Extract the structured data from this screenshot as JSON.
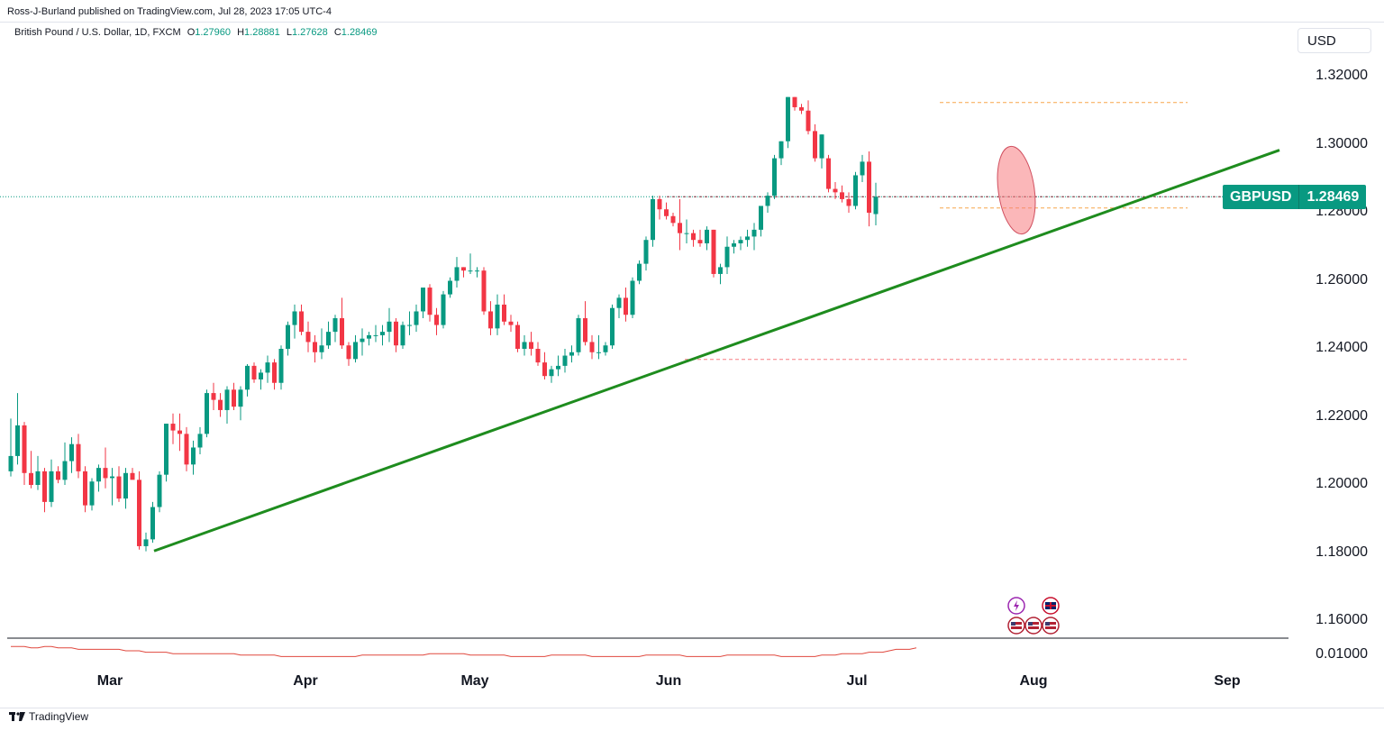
{
  "header": {
    "published_line": "Ross-J-Burland published on TradingView.com, Jul 28, 2023 17:05 UTC-4"
  },
  "legend": {
    "title": "British Pound / U.S. Dollar, 1D, FXCM",
    "open_label": "O",
    "open_value": "1.27960",
    "high_label": "H",
    "high_value": "1.28881",
    "low_label": "L",
    "low_value": "1.27628",
    "close_label": "C",
    "close_value": "1.28469"
  },
  "currency_button": "USD",
  "symbol_tag": {
    "symbol": "GBPUSD",
    "price": "1.28469"
  },
  "footer": {
    "logo_text": "TradingView"
  },
  "colors": {
    "up": "#089981",
    "down": "#f23645",
    "trendline": "#1e8c1e",
    "ellipse": "#f77c80",
    "oscillator": "#e0483e",
    "level_orange": "#f7a64b",
    "level_red": "#f77c80"
  },
  "chart_data": {
    "type": "candlestick",
    "symbol": "GBPUSD",
    "timeframe": "1D",
    "y_ticks": [
      "1.32000",
      "1.30000",
      "1.28000",
      "1.26000",
      "1.24000",
      "1.22000",
      "1.20000",
      "1.18000",
      "1.16000"
    ],
    "oscillator_tick": "0.01000",
    "x_ticks": [
      "Mar",
      "Apr",
      "May",
      "Jun",
      "Jul",
      "Aug",
      "Sep"
    ],
    "ylim": [
      1.1555,
      1.3255
    ],
    "last_price": 1.28469,
    "candles": [
      [
        1.204,
        1.2195,
        1.2025,
        1.2085
      ],
      [
        1.2085,
        1.227,
        1.206,
        1.2175
      ],
      [
        1.2175,
        1.2185,
        1.2,
        1.2035
      ],
      [
        1.2035,
        1.21,
        1.199,
        1.2
      ],
      [
        1.2,
        1.2085,
        1.1985,
        1.204
      ],
      [
        1.204,
        1.205,
        1.192,
        1.195
      ],
      [
        1.195,
        1.2075,
        1.1935,
        1.204
      ],
      [
        1.204,
        1.2055,
        1.2005,
        1.2015
      ],
      [
        1.2015,
        1.2125,
        1.2,
        1.207
      ],
      [
        1.207,
        1.214,
        1.2035,
        1.212
      ],
      [
        1.212,
        1.215,
        1.202,
        1.204
      ],
      [
        1.204,
        1.2055,
        1.192,
        1.194
      ],
      [
        1.194,
        1.202,
        1.1925,
        1.201
      ],
      [
        1.201,
        1.206,
        1.198,
        1.205
      ],
      [
        1.205,
        1.211,
        1.199,
        1.202
      ],
      [
        1.202,
        1.205,
        1.194,
        1.2025
      ],
      [
        1.2025,
        1.2055,
        1.195,
        1.196
      ],
      [
        1.196,
        1.205,
        1.193,
        1.2035
      ],
      [
        1.2035,
        1.205,
        1.202,
        1.2015
      ],
      [
        1.2015,
        1.204,
        1.181,
        1.182
      ],
      [
        1.182,
        1.186,
        1.1805,
        1.184
      ],
      [
        1.184,
        1.195,
        1.183,
        1.1935
      ],
      [
        1.1935,
        1.204,
        1.192,
        1.203
      ],
      [
        1.203,
        1.218,
        1.201,
        1.218
      ],
      [
        1.218,
        1.221,
        1.212,
        1.216
      ],
      [
        1.216,
        1.221,
        1.21,
        1.215
      ],
      [
        1.215,
        1.217,
        1.204,
        1.206
      ],
      [
        1.206,
        1.213,
        1.203,
        1.211
      ],
      [
        1.211,
        1.217,
        1.209,
        1.215
      ],
      [
        1.215,
        1.228,
        1.214,
        1.227
      ],
      [
        1.227,
        1.23,
        1.222,
        1.225
      ],
      [
        1.225,
        1.227,
        1.22,
        1.222
      ],
      [
        1.222,
        1.229,
        1.218,
        1.228
      ],
      [
        1.228,
        1.23,
        1.222,
        1.223
      ],
      [
        1.223,
        1.229,
        1.219,
        1.228
      ],
      [
        1.228,
        1.2355,
        1.226,
        1.235
      ],
      [
        1.235,
        1.236,
        1.23,
        1.231
      ],
      [
        1.231,
        1.234,
        1.228,
        1.233
      ],
      [
        1.233,
        1.238,
        1.23,
        1.236
      ],
      [
        1.236,
        1.237,
        1.228,
        1.23
      ],
      [
        1.23,
        1.241,
        1.228,
        1.24
      ],
      [
        1.24,
        1.248,
        1.238,
        1.247
      ],
      [
        1.247,
        1.253,
        1.243,
        1.251
      ],
      [
        1.251,
        1.253,
        1.244,
        1.245
      ],
      [
        1.245,
        1.248,
        1.239,
        1.242
      ],
      [
        1.242,
        1.244,
        1.236,
        1.239
      ],
      [
        1.239,
        1.246,
        1.237,
        1.241
      ],
      [
        1.241,
        1.248,
        1.24,
        1.245
      ],
      [
        1.245,
        1.25,
        1.242,
        1.249
      ],
      [
        1.249,
        1.255,
        1.24,
        1.241
      ],
      [
        1.241,
        1.242,
        1.235,
        1.237
      ],
      [
        1.237,
        1.244,
        1.236,
        1.242
      ],
      [
        1.242,
        1.246,
        1.238,
        1.243
      ],
      [
        1.243,
        1.245,
        1.241,
        1.244
      ],
      [
        1.244,
        1.247,
        1.242,
        1.244
      ],
      [
        1.244,
        1.247,
        1.241,
        1.245
      ],
      [
        1.245,
        1.252,
        1.242,
        1.248
      ],
      [
        1.248,
        1.249,
        1.239,
        1.241
      ],
      [
        1.241,
        1.248,
        1.24,
        1.247
      ],
      [
        1.247,
        1.251,
        1.244,
        1.247
      ],
      [
        1.247,
        1.253,
        1.245,
        1.251
      ],
      [
        1.251,
        1.258,
        1.249,
        1.258
      ],
      [
        1.258,
        1.259,
        1.248,
        1.25
      ],
      [
        1.25,
        1.252,
        1.244,
        1.247
      ],
      [
        1.247,
        1.257,
        1.246,
        1.256
      ],
      [
        1.256,
        1.261,
        1.255,
        1.26
      ],
      [
        1.26,
        1.267,
        1.258,
        1.264
      ],
      [
        1.264,
        1.264,
        1.261,
        1.263
      ],
      [
        1.263,
        1.268,
        1.262,
        1.263
      ],
      [
        1.263,
        1.264,
        1.261,
        1.263
      ],
      [
        1.263,
        1.264,
        1.25,
        1.251
      ],
      [
        1.251,
        1.254,
        1.244,
        1.246
      ],
      [
        1.246,
        1.256,
        1.244,
        1.253
      ],
      [
        1.253,
        1.256,
        1.247,
        1.248
      ],
      [
        1.248,
        1.25,
        1.245,
        1.247
      ],
      [
        1.247,
        1.248,
        1.239,
        1.24
      ],
      [
        1.24,
        1.244,
        1.238,
        1.242
      ],
      [
        1.242,
        1.245,
        1.238,
        1.24
      ],
      [
        1.24,
        1.242,
        1.235,
        1.236
      ],
      [
        1.236,
        1.239,
        1.231,
        1.232
      ],
      [
        1.232,
        1.235,
        1.23,
        1.234
      ],
      [
        1.234,
        1.238,
        1.232,
        1.235
      ],
      [
        1.235,
        1.24,
        1.233,
        1.238
      ],
      [
        1.238,
        1.241,
        1.236,
        1.239
      ],
      [
        1.239,
        1.25,
        1.238,
        1.249
      ],
      [
        1.249,
        1.254,
        1.241,
        1.242
      ],
      [
        1.242,
        1.244,
        1.237,
        1.239
      ],
      [
        1.239,
        1.244,
        1.237,
        1.239
      ],
      [
        1.239,
        1.242,
        1.238,
        1.241
      ],
      [
        1.241,
        1.253,
        1.24,
        1.252
      ],
      [
        1.252,
        1.256,
        1.249,
        1.255
      ],
      [
        1.255,
        1.258,
        1.248,
        1.25
      ],
      [
        1.25,
        1.261,
        1.249,
        1.26
      ],
      [
        1.26,
        1.266,
        1.259,
        1.265
      ],
      [
        1.265,
        1.273,
        1.263,
        1.272
      ],
      [
        1.272,
        1.285,
        1.27,
        1.284
      ],
      [
        1.284,
        1.285,
        1.278,
        1.281
      ],
      [
        1.281,
        1.283,
        1.278,
        1.279
      ],
      [
        1.279,
        1.28,
        1.276,
        1.277
      ],
      [
        1.277,
        1.284,
        1.269,
        1.274
      ],
      [
        1.274,
        1.278,
        1.271,
        1.274
      ],
      [
        1.274,
        1.275,
        1.27,
        1.272
      ],
      [
        1.272,
        1.275,
        1.27,
        1.271
      ],
      [
        1.271,
        1.276,
        1.269,
        1.275
      ],
      [
        1.275,
        1.275,
        1.261,
        1.262
      ],
      [
        1.262,
        1.265,
        1.259,
        1.264
      ],
      [
        1.264,
        1.273,
        1.262,
        1.27
      ],
      [
        1.27,
        1.272,
        1.268,
        1.271
      ],
      [
        1.271,
        1.273,
        1.269,
        1.272
      ],
      [
        1.272,
        1.275,
        1.27,
        1.273
      ],
      [
        1.273,
        1.277,
        1.269,
        1.275
      ],
      [
        1.275,
        1.282,
        1.273,
        1.282
      ],
      [
        1.282,
        1.286,
        1.28,
        1.285
      ],
      [
        1.285,
        1.297,
        1.284,
        1.296
      ],
      [
        1.296,
        1.301,
        1.294,
        1.301
      ],
      [
        1.301,
        1.314,
        1.299,
        1.314
      ],
      [
        1.314,
        1.314,
        1.31,
        1.311
      ],
      [
        1.311,
        1.312,
        1.309,
        1.31
      ],
      [
        1.31,
        1.313,
        1.303,
        1.304
      ],
      [
        1.304,
        1.306,
        1.295,
        1.296
      ],
      [
        1.296,
        1.303,
        1.293,
        1.303
      ],
      [
        1.296,
        1.297,
        1.286,
        1.287
      ],
      [
        1.287,
        1.289,
        1.284,
        1.286
      ],
      [
        1.286,
        1.288,
        1.283,
        1.284
      ],
      [
        1.284,
        1.286,
        1.28,
        1.282
      ],
      [
        1.282,
        1.292,
        1.281,
        1.291
      ],
      [
        1.291,
        1.297,
        1.289,
        1.295
      ],
      [
        1.295,
        1.298,
        1.276,
        1.28
      ],
      [
        1.2796,
        1.28881,
        1.27628,
        1.28469
      ]
    ],
    "trendline": {
      "from": {
        "date": "2023-03-08",
        "price": 1.1806
      },
      "to": {
        "date": "2023-08-24",
        "price": 1.2984
      }
    },
    "levels": [
      {
        "price": 1.3124,
        "color": "orange",
        "style": "dashed"
      },
      {
        "price": 1.2814,
        "color": "orange",
        "style": "dashed"
      },
      {
        "price": 1.2369,
        "color": "red",
        "style": "dashed"
      },
      {
        "price": 1.28469,
        "color": "green",
        "style": "dotted"
      }
    ],
    "oscillator": [
      3,
      3,
      3,
      2,
      2,
      3,
      3,
      2,
      2,
      2,
      1,
      1,
      1,
      1,
      1,
      1,
      1,
      0,
      0,
      0,
      -1,
      -1,
      -1,
      -1,
      -2,
      -2,
      -2,
      -2,
      -2,
      -2,
      -2,
      -2,
      -2,
      -2,
      -3,
      -3,
      -3,
      -3,
      -3,
      -3,
      -4,
      -4,
      -4,
      -4,
      -4,
      -4,
      -4,
      -4,
      -4,
      -4,
      -4,
      -4,
      -3,
      -3,
      -3,
      -3,
      -3,
      -3,
      -3,
      -3,
      -3,
      -3,
      -2,
      -2,
      -2,
      -2,
      -2,
      -2,
      -3,
      -3,
      -3,
      -3,
      -3,
      -3,
      -4,
      -4,
      -4,
      -4,
      -4,
      -4,
      -3,
      -3,
      -3,
      -3,
      -3,
      -3,
      -4,
      -4,
      -4,
      -4,
      -4,
      -4,
      -4,
      -4,
      -3,
      -3,
      -3,
      -3,
      -3,
      -3,
      -4,
      -4,
      -4,
      -4,
      -4,
      -4,
      -3,
      -3,
      -3,
      -3,
      -3,
      -3,
      -3,
      -3,
      -4,
      -4,
      -4,
      -4,
      -4,
      -4,
      -3,
      -3,
      -3,
      -2,
      -2,
      -2,
      -2,
      -1,
      -1,
      -1,
      0,
      1,
      1,
      1,
      2
    ]
  }
}
